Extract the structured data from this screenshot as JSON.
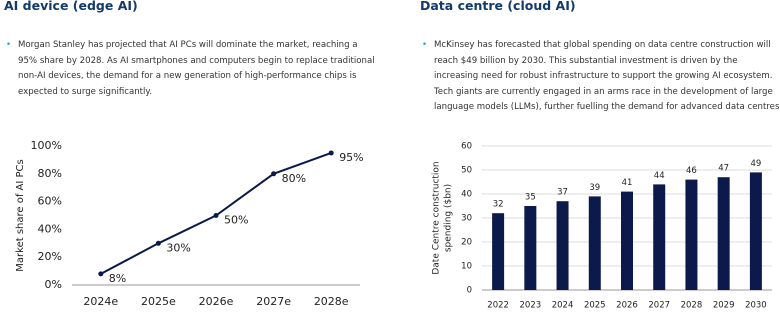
{
  "panels": [
    {
      "heading": "AI device (edge AI)",
      "bullet": "Morgan Stanley has projected that AI PCs will dominate the market, reaching a 95% share by 2028. As AI smartphones and computers begin to replace traditional non-AI devices, the demand for a new generation of high-performance chips is expected to surge significantly."
    },
    {
      "heading": "Data centre (cloud AI)",
      "bullet": "McKinsey has forecasted that global spending on data centre construction will reach $49 billion by 2030. This substantial investment is driven by the increasing need for robust infrastructure to support the growing AI ecosystem. Tech giants are currently engaged in an arms race in the development of large language models (LLMs), further fuelling the demand for advanced data centres."
    }
  ],
  "chart_data": [
    {
      "type": "line",
      "ylabel": [
        "Market share of AI PCs"
      ],
      "categories": [
        "2024e",
        "2025e",
        "2026e",
        "2027e",
        "2028e"
      ],
      "values": [
        8,
        30,
        50,
        80,
        95
      ],
      "value_labels": [
        "8%",
        "30%",
        "50%",
        "80%",
        "95%"
      ],
      "color": "#0b1a4a",
      "grid": false,
      "ylim": [
        0,
        100
      ],
      "yticks": [
        {
          "value": 0,
          "label": "0%"
        },
        {
          "value": 20,
          "label": "20%"
        },
        {
          "value": 40,
          "label": "40%"
        },
        {
          "value": 60,
          "label": "60%"
        },
        {
          "value": 80,
          "label": "80%"
        },
        {
          "value": 100,
          "label": "100%"
        }
      ]
    },
    {
      "type": "bar",
      "ylabel": [
        "Date Centre construction",
        "spending ($bn)"
      ],
      "categories": [
        "2022",
        "2023",
        "2024",
        "2025",
        "2026",
        "2027",
        "2028",
        "2029",
        "2030"
      ],
      "values": [
        32,
        35,
        37,
        39,
        41,
        44,
        46,
        47,
        49
      ],
      "color": "#0b1a4a",
      "grid": true,
      "ylim": [
        0,
        60
      ],
      "yticks": [
        0,
        10,
        20,
        30,
        40,
        50,
        60
      ]
    }
  ]
}
